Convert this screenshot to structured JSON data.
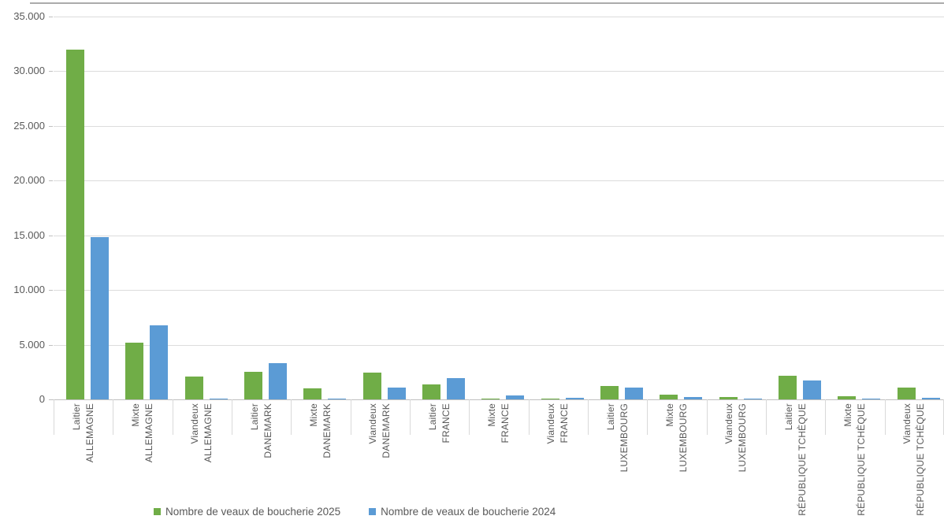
{
  "chart_data": {
    "type": "bar",
    "title": "",
    "grid": true,
    "legend_position": "bottom",
    "background_color": "#FFFFFF",
    "text_color": "#595959",
    "gridline_color": "#DCDCDC",
    "axis_line_color": "#BFBFBF",
    "y_axis": {
      "min": 0,
      "max": 35000,
      "tick_interval": 5000,
      "tick_labels": [
        "0",
        "5.000",
        "10.000",
        "15.000",
        "20.000",
        "25.000",
        "30.000",
        "35.000"
      ]
    },
    "categories": [
      {
        "group": "Laitier",
        "country": "ALLEMAGNE"
      },
      {
        "group": "Mixte",
        "country": "ALLEMAGNE"
      },
      {
        "group": "Viandeux",
        "country": "ALLEMAGNE"
      },
      {
        "group": "Laitier",
        "country": "DANEMARK"
      },
      {
        "group": "Mixte",
        "country": "DANEMARK"
      },
      {
        "group": "Viandeux",
        "country": "DANEMARK"
      },
      {
        "group": "Laitier",
        "country": "FRANCE"
      },
      {
        "group": "Mixte",
        "country": "FRANCE"
      },
      {
        "group": "Viandeux",
        "country": "FRANCE"
      },
      {
        "group": "Laitier",
        "country": "LUXEMBOURG"
      },
      {
        "group": "Mixte",
        "country": "LUXEMBOURG"
      },
      {
        "group": "Viandeux",
        "country": "LUXEMBOURG"
      },
      {
        "group": "Laitier",
        "country": "RÉPUBLIQUE TCHÈQUE"
      },
      {
        "group": "Mixte",
        "country": "RÉPUBLIQUE TCHÈQUE"
      },
      {
        "group": "Viandeux",
        "country": "RÉPUBLIQUE TCHÈQUE"
      }
    ],
    "series": [
      {
        "name": "Nombre de veaux de boucherie 2025",
        "color": "#70AD47",
        "values": [
          32000,
          5200,
          2100,
          2550,
          1000,
          2450,
          1350,
          80,
          50,
          1250,
          420,
          250,
          2150,
          300,
          1100
        ]
      },
      {
        "name": "Nombre de veaux de boucherie 2024",
        "color": "#5B9BD5",
        "values": [
          14800,
          6800,
          80,
          3300,
          60,
          1050,
          1950,
          350,
          150,
          1050,
          220,
          60,
          1700,
          50,
          120
        ]
      }
    ]
  }
}
